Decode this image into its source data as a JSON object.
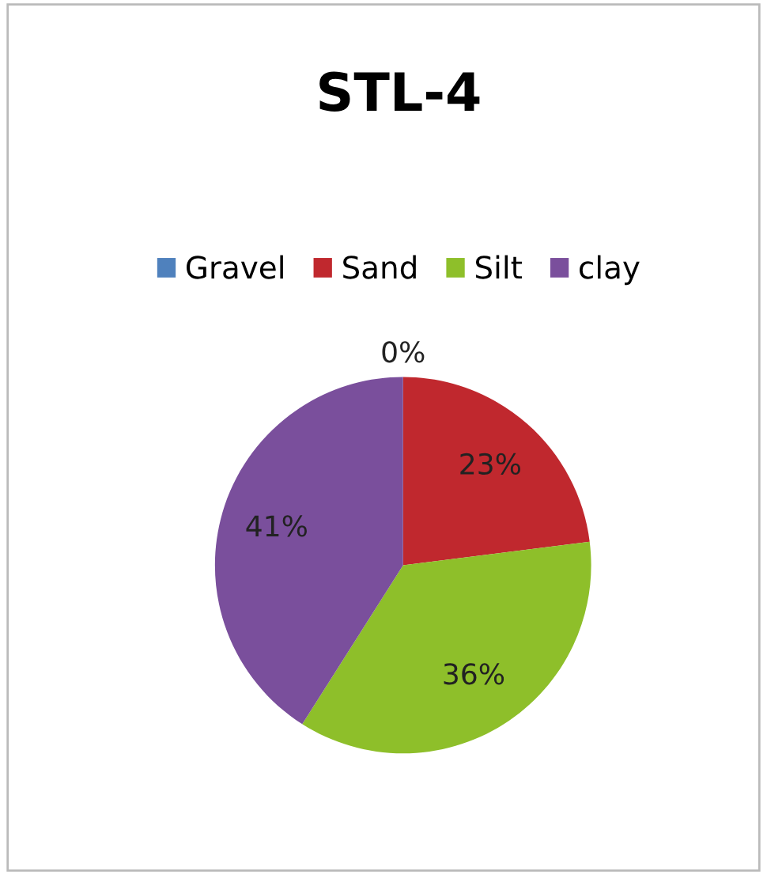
{
  "chart_data": {
    "type": "pie",
    "title": "STL-4",
    "categories": [
      "Gravel",
      "Sand",
      "Silt",
      "clay"
    ],
    "values": [
      0,
      23,
      36,
      41
    ],
    "colors": [
      "#4f81bd",
      "#c0282e",
      "#8ebf2a",
      "#7a4f9c"
    ],
    "value_labels": [
      "0%",
      "23%",
      "36%",
      "41%"
    ],
    "legend": "top"
  }
}
